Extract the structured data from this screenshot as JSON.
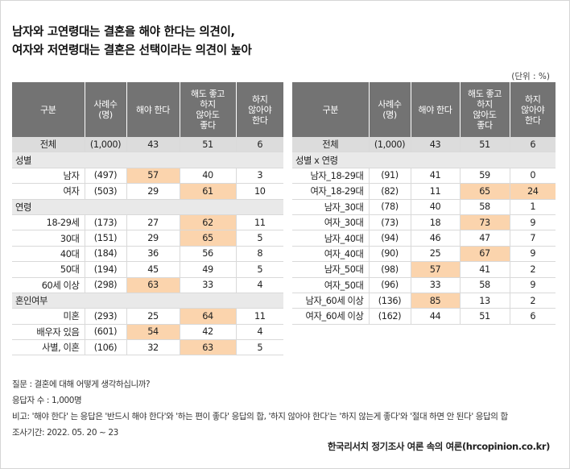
{
  "title_lines": [
    "남자와 고연령대는 결혼을 해야 한다는 의견이,",
    "여자와 저연령대는 결혼은 선택이라는 의견이 높아"
  ],
  "unit": "(단위 : %)",
  "headers": [
    "구분",
    "사례수\n(명)",
    "해야 한다",
    "해도 좋고\n하지\n않아도\n좋다",
    "하지\n않아야\n한다"
  ],
  "left_table": [
    {
      "type": "total",
      "cells": [
        "전체",
        "(1,000)",
        "43",
        "51",
        "6"
      ],
      "hl": []
    },
    {
      "type": "section",
      "label": "성별"
    },
    {
      "type": "row",
      "cells": [
        "남자",
        "(497)",
        "57",
        "40",
        "3"
      ],
      "hl": [
        2
      ]
    },
    {
      "type": "row",
      "cells": [
        "여자",
        "(503)",
        "29",
        "61",
        "10"
      ],
      "hl": [
        3
      ]
    },
    {
      "type": "section",
      "label": "연령"
    },
    {
      "type": "row",
      "cells": [
        "18-29세",
        "(173)",
        "27",
        "62",
        "11"
      ],
      "hl": [
        3
      ]
    },
    {
      "type": "row",
      "cells": [
        "30대",
        "(151)",
        "29",
        "65",
        "5"
      ],
      "hl": [
        3
      ]
    },
    {
      "type": "row",
      "cells": [
        "40대",
        "(184)",
        "36",
        "56",
        "8"
      ],
      "hl": []
    },
    {
      "type": "row",
      "cells": [
        "50대",
        "(194)",
        "45",
        "49",
        "5"
      ],
      "hl": []
    },
    {
      "type": "row",
      "cells": [
        "60세 이상",
        "(298)",
        "63",
        "33",
        "4"
      ],
      "hl": [
        2
      ]
    },
    {
      "type": "section",
      "label": "혼인여부"
    },
    {
      "type": "row",
      "cells": [
        "미혼",
        "(293)",
        "25",
        "64",
        "11"
      ],
      "hl": [
        3
      ]
    },
    {
      "type": "row",
      "cells": [
        "배우자 있음",
        "(601)",
        "54",
        "42",
        "4"
      ],
      "hl": [
        2
      ]
    },
    {
      "type": "row",
      "cells": [
        "사별, 이혼",
        "(106)",
        "32",
        "63",
        "5"
      ],
      "hl": [
        3
      ]
    }
  ],
  "right_table": [
    {
      "type": "total",
      "cells": [
        "전체",
        "(1,000)",
        "43",
        "51",
        "6"
      ],
      "hl": []
    },
    {
      "type": "section",
      "label": "성별 x 연령"
    },
    {
      "type": "row",
      "cells": [
        "남자_18-29대",
        "(91)",
        "41",
        "59",
        "0"
      ],
      "hl": []
    },
    {
      "type": "row",
      "cells": [
        "여자_18-29대",
        "(82)",
        "11",
        "65",
        "24"
      ],
      "hl": [
        3,
        4
      ]
    },
    {
      "type": "row",
      "cells": [
        "남자_30대",
        "(78)",
        "40",
        "58",
        "1"
      ],
      "hl": []
    },
    {
      "type": "row",
      "cells": [
        "여자_30대",
        "(73)",
        "18",
        "73",
        "9"
      ],
      "hl": [
        3
      ]
    },
    {
      "type": "row",
      "cells": [
        "남자_40대",
        "(94)",
        "46",
        "47",
        "7"
      ],
      "hl": []
    },
    {
      "type": "row",
      "cells": [
        "여자_40대",
        "(90)",
        "25",
        "67",
        "9"
      ],
      "hl": [
        3
      ]
    },
    {
      "type": "row",
      "cells": [
        "남자_50대",
        "(98)",
        "57",
        "41",
        "2"
      ],
      "hl": [
        2
      ]
    },
    {
      "type": "row",
      "cells": [
        "여자_50대",
        "(96)",
        "33",
        "58",
        "9"
      ],
      "hl": []
    },
    {
      "type": "row",
      "cells": [
        "남자_60세 이상",
        "(136)",
        "85",
        "13",
        "2"
      ],
      "hl": [
        2
      ]
    },
    {
      "type": "row",
      "cells": [
        "여자_60세 이상",
        "(162)",
        "44",
        "51",
        "6"
      ],
      "hl": []
    }
  ],
  "notes": [
    "질문 : 결혼에 대해 어떻게 생각하십니까?",
    "응답자 수 : 1,000명",
    "비고: '해야 한다' 는 응답은 '반드시 해야 한다'와 '하는 편이 좋다' 응답의 합, '하지 않아야 한다'는 '하지 않는게 좋다'와 '절대 하면 안 된다' 응답의 합",
    "조사기간: 2022. 05. 20 ~ 23"
  ],
  "source": "한국리서치 정기조사 여론 속의 여론(hrcopinion.co.kr)",
  "colors": {
    "header_bg": "#737373",
    "total_bg": "#dcdcdc",
    "section_bg": "#e9e9e9",
    "highlight": "#fbd4ad"
  }
}
